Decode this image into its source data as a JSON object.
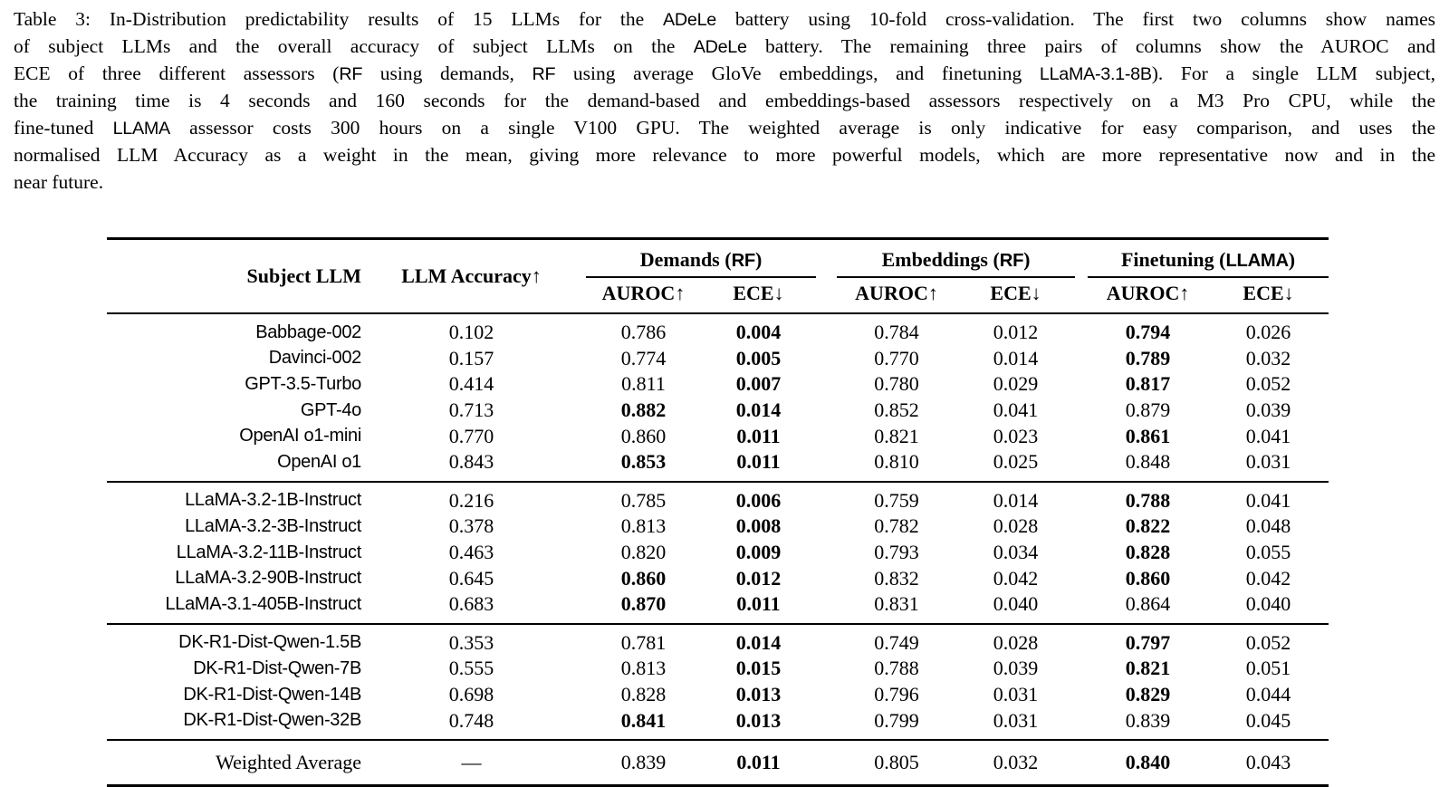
{
  "caption": {
    "lines": [
      {
        "segments": [
          {
            "t": "Table 3: In-Distribution predictability results of 15 LLMs for the ",
            "f": "serif"
          },
          {
            "t": "ADeLe",
            "f": "sans"
          },
          {
            "t": " battery using 10-fold cross-validation. The first two columns show names",
            "f": "serif"
          }
        ]
      },
      {
        "segments": [
          {
            "t": "of subject LLMs and the overall accuracy of subject LLMs on the ",
            "f": "serif"
          },
          {
            "t": "ADeLe",
            "f": "sans"
          },
          {
            "t": " battery. The remaining three pairs of columns show the AUROC and",
            "f": "serif"
          }
        ]
      },
      {
        "segments": [
          {
            "t": "ECE of three different assessors (",
            "f": "serif"
          },
          {
            "t": "RF",
            "f": "sans"
          },
          {
            "t": " using demands, ",
            "f": "serif"
          },
          {
            "t": "RF",
            "f": "sans"
          },
          {
            "t": " using average GloVe embeddings, and finetuning ",
            "f": "serif"
          },
          {
            "t": "LLaMA-3.1-8B",
            "f": "sans"
          },
          {
            "t": "). For a single LLM subject,",
            "f": "serif"
          }
        ]
      },
      {
        "segments": [
          {
            "t": "the training time is 4 seconds and 160 seconds for the demand-based and embeddings-based assessors respectively on a M3 Pro CPU, while the",
            "f": "serif"
          }
        ]
      },
      {
        "segments": [
          {
            "t": "fine-tuned ",
            "f": "serif"
          },
          {
            "t": "LLAMA",
            "f": "sans"
          },
          {
            "t": " assessor costs 300 hours on a single V100 GPU. The weighted average is only indicative for easy comparison, and uses the",
            "f": "serif"
          }
        ]
      },
      {
        "segments": [
          {
            "t": "normalised LLM Accuracy as a weight in the mean, giving more relevance to more powerful models, which are more representative now and in the",
            "f": "serif"
          }
        ]
      },
      {
        "segments": [
          {
            "t": "near future.",
            "f": "serif"
          }
        ]
      }
    ]
  },
  "table": {
    "headers": {
      "subject": "Subject LLM",
      "accuracy": "LLM Accuracy↑",
      "auroc": "AUROC↑",
      "ece": "ECE↓",
      "groups": [
        {
          "segments": [
            {
              "t": "Demands (",
              "f": "serif"
            },
            {
              "t": "RF",
              "f": "sans"
            },
            {
              "t": ")",
              "f": "serif"
            }
          ]
        },
        {
          "segments": [
            {
              "t": "Embeddings (",
              "f": "serif"
            },
            {
              "t": "RF",
              "f": "sans"
            },
            {
              "t": ")",
              "f": "serif"
            }
          ]
        },
        {
          "segments": [
            {
              "t": "Finetuning (",
              "f": "serif"
            },
            {
              "t": "LLAMA",
              "f": "sans"
            },
            {
              "t": ")",
              "f": "serif"
            }
          ]
        }
      ]
    },
    "groups": [
      {
        "rows": [
          {
            "name": "Babbage-002",
            "values": [
              "0.102",
              "0.786",
              "0.004",
              "0.784",
              "0.012",
              "0.794",
              "0.026"
            ],
            "bold": [
              false,
              false,
              true,
              false,
              false,
              true,
              false
            ]
          },
          {
            "name": "Davinci-002",
            "values": [
              "0.157",
              "0.774",
              "0.005",
              "0.770",
              "0.014",
              "0.789",
              "0.032"
            ],
            "bold": [
              false,
              false,
              true,
              false,
              false,
              true,
              false
            ]
          },
          {
            "name": "GPT-3.5-Turbo",
            "values": [
              "0.414",
              "0.811",
              "0.007",
              "0.780",
              "0.029",
              "0.817",
              "0.052"
            ],
            "bold": [
              false,
              false,
              true,
              false,
              false,
              true,
              false
            ]
          },
          {
            "name": "GPT-4o",
            "values": [
              "0.713",
              "0.882",
              "0.014",
              "0.852",
              "0.041",
              "0.879",
              "0.039"
            ],
            "bold": [
              false,
              true,
              true,
              false,
              false,
              false,
              false
            ]
          },
          {
            "name": "OpenAI o1-mini",
            "values": [
              "0.770",
              "0.860",
              "0.011",
              "0.821",
              "0.023",
              "0.861",
              "0.041"
            ],
            "bold": [
              false,
              false,
              true,
              false,
              false,
              true,
              false
            ]
          },
          {
            "name": "OpenAI o1",
            "values": [
              "0.843",
              "0.853",
              "0.011",
              "0.810",
              "0.025",
              "0.848",
              "0.031"
            ],
            "bold": [
              false,
              true,
              true,
              false,
              false,
              false,
              false
            ]
          }
        ]
      },
      {
        "rows": [
          {
            "name": "LLaMA-3.2-1B-Instruct",
            "values": [
              "0.216",
              "0.785",
              "0.006",
              "0.759",
              "0.014",
              "0.788",
              "0.041"
            ],
            "bold": [
              false,
              false,
              true,
              false,
              false,
              true,
              false
            ]
          },
          {
            "name": "LLaMA-3.2-3B-Instruct",
            "values": [
              "0.378",
              "0.813",
              "0.008",
              "0.782",
              "0.028",
              "0.822",
              "0.048"
            ],
            "bold": [
              false,
              false,
              true,
              false,
              false,
              true,
              false
            ]
          },
          {
            "name": "LLaMA-3.2-11B-Instruct",
            "values": [
              "0.463",
              "0.820",
              "0.009",
              "0.793",
              "0.034",
              "0.828",
              "0.055"
            ],
            "bold": [
              false,
              false,
              true,
              false,
              false,
              true,
              false
            ]
          },
          {
            "name": "LLaMA-3.2-90B-Instruct",
            "values": [
              "0.645",
              "0.860",
              "0.012",
              "0.832",
              "0.042",
              "0.860",
              "0.042"
            ],
            "bold": [
              false,
              true,
              true,
              false,
              false,
              true,
              false
            ]
          },
          {
            "name": "LLaMA-3.1-405B-Instruct",
            "values": [
              "0.683",
              "0.870",
              "0.011",
              "0.831",
              "0.040",
              "0.864",
              "0.040"
            ],
            "bold": [
              false,
              true,
              true,
              false,
              false,
              false,
              false
            ]
          }
        ]
      },
      {
        "rows": [
          {
            "name": "DK-R1-Dist-Qwen-1.5B",
            "values": [
              "0.353",
              "0.781",
              "0.014",
              "0.749",
              "0.028",
              "0.797",
              "0.052"
            ],
            "bold": [
              false,
              false,
              true,
              false,
              false,
              true,
              false
            ]
          },
          {
            "name": "DK-R1-Dist-Qwen-7B",
            "values": [
              "0.555",
              "0.813",
              "0.015",
              "0.788",
              "0.039",
              "0.821",
              "0.051"
            ],
            "bold": [
              false,
              false,
              true,
              false,
              false,
              true,
              false
            ]
          },
          {
            "name": "DK-R1-Dist-Qwen-14B",
            "values": [
              "0.698",
              "0.828",
              "0.013",
              "0.796",
              "0.031",
              "0.829",
              "0.044"
            ],
            "bold": [
              false,
              false,
              true,
              false,
              false,
              true,
              false
            ]
          },
          {
            "name": "DK-R1-Dist-Qwen-32B",
            "values": [
              "0.748",
              "0.841",
              "0.013",
              "0.799",
              "0.031",
              "0.839",
              "0.045"
            ],
            "bold": [
              false,
              true,
              true,
              false,
              false,
              false,
              false
            ]
          }
        ]
      }
    ],
    "footer": {
      "name": "Weighted Average",
      "values": [
        "—",
        "0.839",
        "0.011",
        "0.805",
        "0.032",
        "0.840",
        "0.043"
      ],
      "bold": [
        false,
        false,
        true,
        false,
        false,
        true,
        false
      ]
    }
  }
}
